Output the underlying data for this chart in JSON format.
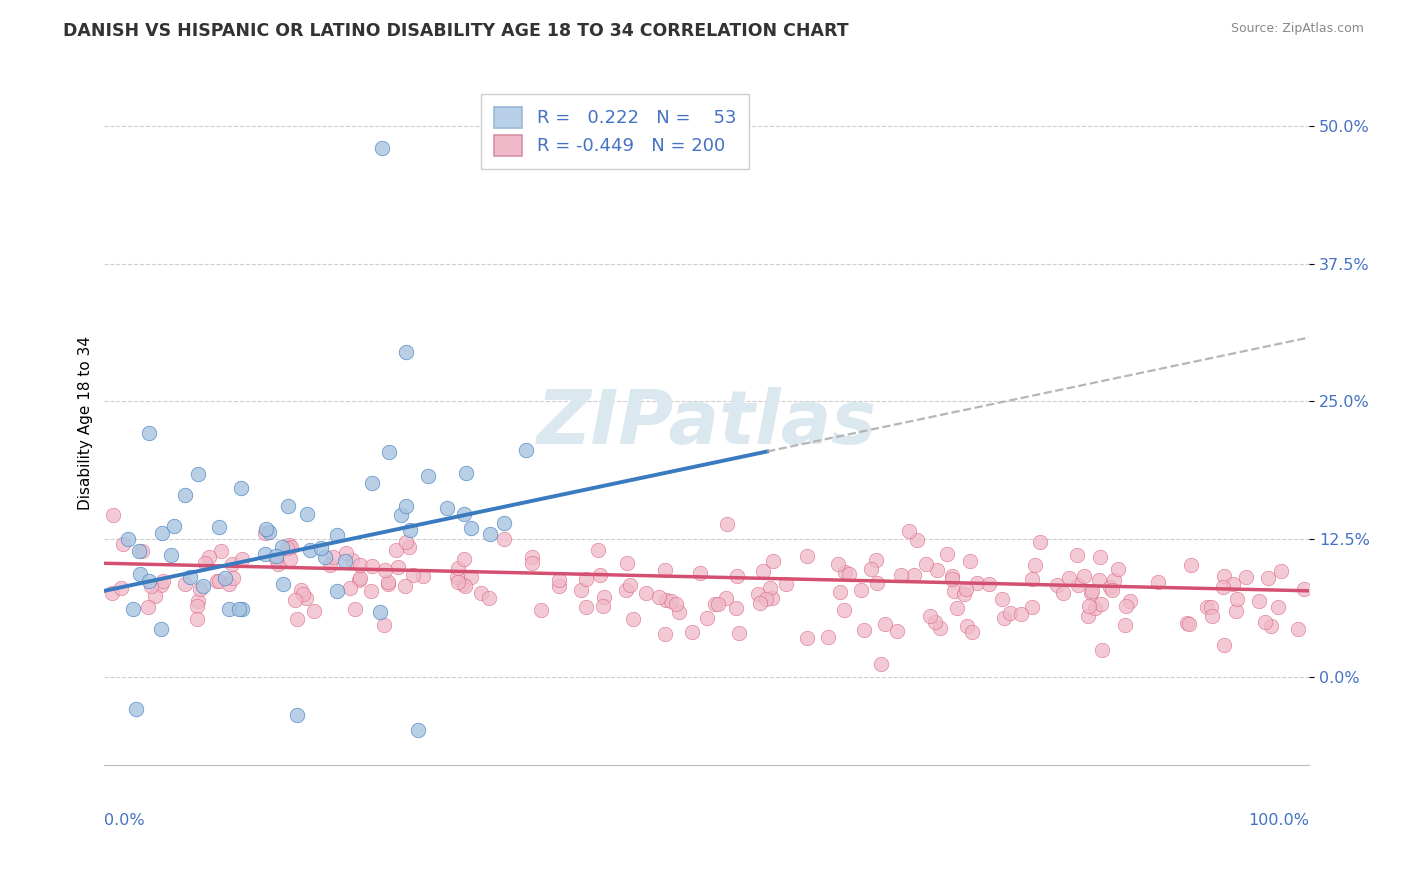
{
  "title": "DANISH VS HISPANIC OR LATINO DISABILITY AGE 18 TO 34 CORRELATION CHART",
  "source": "Source: ZipAtlas.com",
  "ylabel": "Disability Age 18 to 34",
  "ytick_labels": [
    "0.0%",
    "12.5%",
    "25.0%",
    "37.5%",
    "50.0%"
  ],
  "ytick_values": [
    0.0,
    0.125,
    0.25,
    0.375,
    0.5
  ],
  "xlim": [
    0.0,
    1.0
  ],
  "ylim": [
    -0.08,
    0.54
  ],
  "danes_R": 0.222,
  "danes_N": 53,
  "hispanic_R": -0.449,
  "hispanic_N": 200,
  "danes_scatter_color": "#a8c4e0",
  "danes_line_color": "#3a7abf",
  "hispanic_scatter_color": "#f0b8c8",
  "hispanic_line_color": "#d45070",
  "legend_danes_face": "#b8d0e8",
  "legend_hisp_face": "#f0b8c8",
  "background_color": "#ffffff",
  "grid_color": "#c8c8c8",
  "watermark_color": "#dce8f0",
  "title_color": "#333333",
  "source_color": "#888888",
  "tick_color": "#4472c4",
  "legend_text_black": "R = ",
  "legend_text_blue_danes": "0.222",
  "legend_text_blue_hisp": "-0.449",
  "legend_N_blue_danes": "53",
  "legend_N_blue_hisp": "200"
}
